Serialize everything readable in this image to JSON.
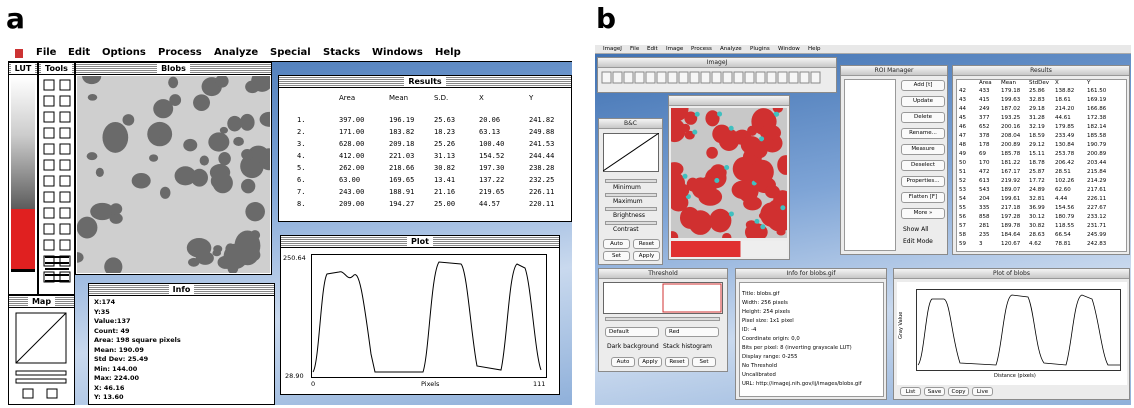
{
  "panel_a": {
    "label": "a",
    "menu": [
      "File",
      "Edit",
      "Options",
      "Process",
      "Analyze",
      "Special",
      "Stacks",
      "Windows",
      "Help"
    ],
    "lut_title": "LUT",
    "tools_title": "Tools",
    "image_title": "Blobs",
    "results": {
      "title": "Results",
      "columns": [
        "Area",
        "Mean",
        "S.D.",
        "X",
        "Y"
      ],
      "rows": [
        [
          "1.",
          "397.00",
          "196.19",
          "25.63",
          "20.06",
          "241.82"
        ],
        [
          "2.",
          "171.00",
          "183.82",
          "18.23",
          "63.13",
          "249.88"
        ],
        [
          "3.",
          "628.00",
          "209.18",
          "25.26",
          "100.40",
          "241.53"
        ],
        [
          "4.",
          "412.00",
          "221.03",
          "31.13",
          "154.52",
          "244.44"
        ],
        [
          "5.",
          "262.00",
          "218.66",
          "30.82",
          "197.30",
          "238.28"
        ],
        [
          "6.",
          "63.00",
          "169.65",
          "13.41",
          "137.22",
          "232.25"
        ],
        [
          "7.",
          "243.00",
          "188.91",
          "21.16",
          "219.65",
          "226.11"
        ],
        [
          "8.",
          "209.00",
          "194.27",
          "25.00",
          "44.57",
          "220.11"
        ]
      ]
    },
    "plot": {
      "title": "Plot",
      "y_max": "250.64",
      "y_min": "28.90",
      "x_min": "0",
      "x_label": "Pixels",
      "x_max": "111"
    },
    "map_title": "Map",
    "info": {
      "title": "Info",
      "lines": [
        "X:174",
        "Y:35",
        "Value:137",
        "Count: 49",
        "Area: 198 square pixels",
        "Mean: 190.09",
        "Std Dev: 25.49",
        "Min: 144.00",
        "Max: 224.00",
        "X: 46.16",
        "Y: 13.60"
      ]
    }
  },
  "panel_b": {
    "label": "b",
    "imagej": {
      "title": "ImageJ",
      "menu": [
        "ImageJ",
        "File",
        "Edit",
        "Image",
        "Process",
        "Analyze",
        "Plugins",
        "Window",
        "Help"
      ]
    },
    "bc": {
      "title": "B&C",
      "labels": [
        "Minimum",
        "Maximum",
        "Brightness",
        "Contrast"
      ],
      "buttons": [
        "Auto",
        "Reset",
        "Set",
        "Apply"
      ]
    },
    "roi": {
      "title": "ROI Manager",
      "buttons": [
        "Add [t]",
        "Update",
        "Delete",
        "Rename...",
        "Measure",
        "Deselect",
        "Properties...",
        "Flatten [F]",
        "More »"
      ],
      "checkboxes": [
        "Show All",
        "Edit Mode"
      ]
    },
    "results": {
      "title": "Results",
      "columns": [
        "Area",
        "Mean",
        "StdDev",
        "X",
        "Y"
      ],
      "rows": [
        [
          "42",
          "433",
          "179.18",
          "25.86",
          "138.82",
          "161.50"
        ],
        [
          "43",
          "415",
          "199.63",
          "32.83",
          "18.61",
          "169.19"
        ],
        [
          "44",
          "249",
          "187.02",
          "29.18",
          "214.20",
          "166.86"
        ],
        [
          "45",
          "377",
          "193.25",
          "31.28",
          "44.61",
          "172.38"
        ],
        [
          "46",
          "652",
          "200.16",
          "32.19",
          "179.85",
          "182.14"
        ],
        [
          "47",
          "378",
          "208.04",
          "18.59",
          "233.49",
          "185.58"
        ],
        [
          "48",
          "178",
          "200.89",
          "29.12",
          "130.84",
          "190.79"
        ],
        [
          "49",
          "69",
          "185.78",
          "15.11",
          "253.78",
          "200.89"
        ],
        [
          "50",
          "170",
          "181.22",
          "18.78",
          "206.42",
          "203.44"
        ],
        [
          "51",
          "472",
          "167.17",
          "25.87",
          "28.51",
          "215.84"
        ],
        [
          "52",
          "613",
          "219.92",
          "17.72",
          "102.26",
          "214.29"
        ],
        [
          "53",
          "543",
          "189.07",
          "24.89",
          "62.60",
          "217.61"
        ],
        [
          "54",
          "204",
          "199.61",
          "32.81",
          "4.44",
          "226.11"
        ],
        [
          "55",
          "335",
          "217.18",
          "36.99",
          "154.56",
          "227.67"
        ],
        [
          "56",
          "858",
          "197.28",
          "30.12",
          "180.79",
          "233.12"
        ],
        [
          "57",
          "281",
          "189.78",
          "30.82",
          "118.55",
          "231.71"
        ],
        [
          "58",
          "235",
          "184.64",
          "28.63",
          "66.54",
          "245.99"
        ],
        [
          "59",
          "3",
          "120.67",
          "4.62",
          "78.81",
          "242.83"
        ]
      ]
    },
    "threshold": {
      "title": "Threshold",
      "dropdowns": [
        "Default",
        "Red"
      ],
      "checkboxes": [
        "Dark background",
        "Stack histogram"
      ],
      "buttons": [
        "Auto",
        "Apply",
        "Reset",
        "Set"
      ]
    },
    "info": {
      "title": "Info for blobs.gif",
      "lines": [
        "Title: blobs.gif",
        "Width: 256 pixels",
        "Height: 254 pixels",
        "Pixel size: 1x1 pixel",
        "ID: -4",
        "Coordinate origin: 0,0",
        "Bits per pixel: 8 (inverting grayscale LUT)",
        "Display range: 0-255",
        "No Threshold",
        "Uncalibrated",
        "URL: http://imagej.nih.gov/ij/images/blobs.gif"
      ]
    },
    "plot": {
      "title": "Plot of blobs",
      "y_label": "Gray Value",
      "x_label": "Distance (pixels)",
      "buttons": [
        "List",
        "Save",
        "Copy",
        "Live"
      ]
    }
  }
}
